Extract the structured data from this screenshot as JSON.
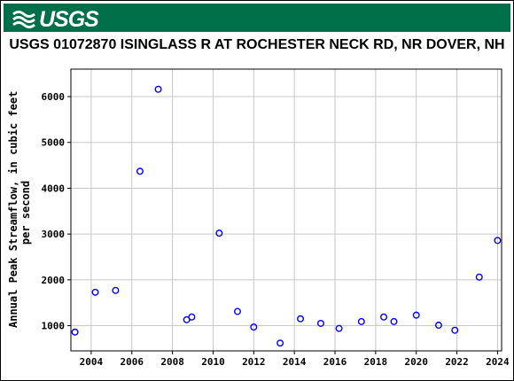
{
  "header": {
    "logo_text": "USGS",
    "logo_icon": "usgs-wave-icon",
    "banner_color": "#00704a"
  },
  "chart_data": {
    "type": "scatter",
    "title": "USGS 01072870 ISINGLASS R AT ROCHESTER NECK RD, NR DOVER, NH",
    "xlabel": "",
    "ylabel_line1": "Annual Peak Streamflow, in cubic feet",
    "ylabel_line2": "per second",
    "xlim": [
      2003.0,
      2024.2
    ],
    "ylim": [
      450,
      6600
    ],
    "x_ticks": [
      2004,
      2006,
      2008,
      2010,
      2012,
      2014,
      2016,
      2018,
      2020,
      2022,
      2024
    ],
    "y_ticks": [
      1000,
      2000,
      3000,
      4000,
      5000,
      6000
    ],
    "grid": true,
    "marker": "open-circle",
    "marker_color": "#0000ff",
    "points": [
      {
        "x": 2003.2,
        "y": 860
      },
      {
        "x": 2004.2,
        "y": 1730
      },
      {
        "x": 2005.2,
        "y": 1770
      },
      {
        "x": 2006.4,
        "y": 4370
      },
      {
        "x": 2007.3,
        "y": 6160
      },
      {
        "x": 2008.7,
        "y": 1130
      },
      {
        "x": 2008.95,
        "y": 1190
      },
      {
        "x": 2010.3,
        "y": 3020
      },
      {
        "x": 2011.2,
        "y": 1310
      },
      {
        "x": 2012.0,
        "y": 970
      },
      {
        "x": 2013.3,
        "y": 620
      },
      {
        "x": 2014.3,
        "y": 1150
      },
      {
        "x": 2015.3,
        "y": 1050
      },
      {
        "x": 2016.2,
        "y": 940
      },
      {
        "x": 2017.3,
        "y": 1090
      },
      {
        "x": 2018.4,
        "y": 1190
      },
      {
        "x": 2018.9,
        "y": 1090
      },
      {
        "x": 2020.0,
        "y": 1230
      },
      {
        "x": 2021.1,
        "y": 1010
      },
      {
        "x": 2021.9,
        "y": 900
      },
      {
        "x": 2023.1,
        "y": 2060
      },
      {
        "x": 2024.0,
        "y": 2860
      }
    ]
  }
}
